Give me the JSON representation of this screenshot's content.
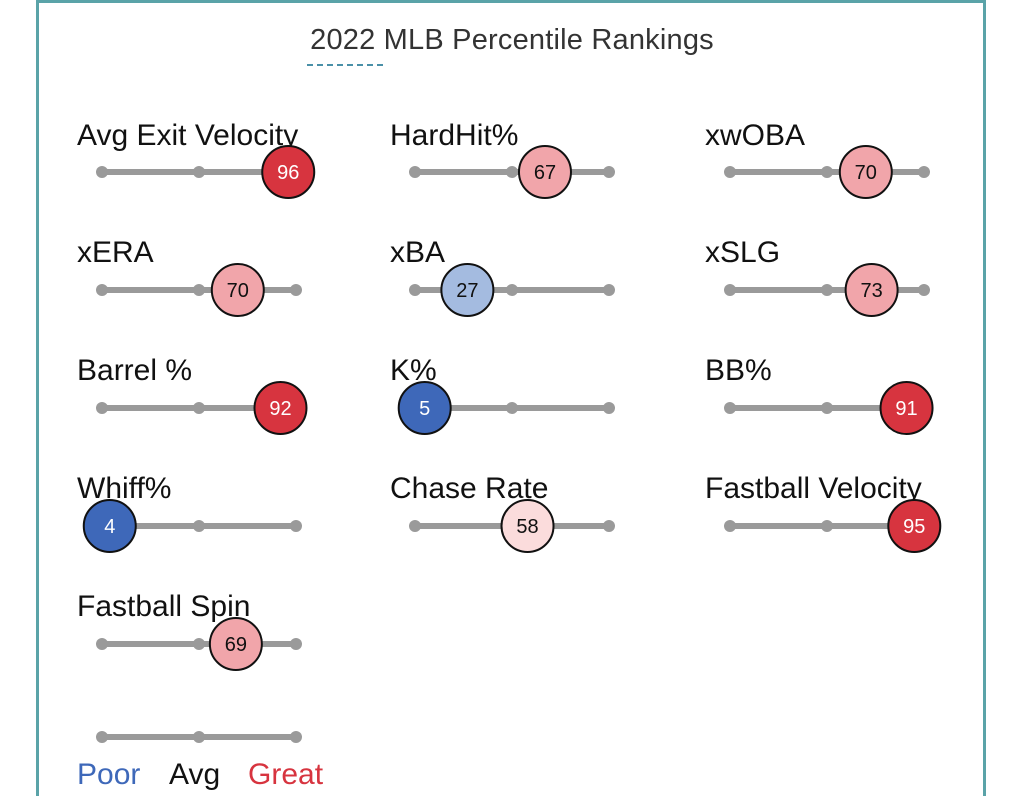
{
  "chart_data": {
    "type": "scatter",
    "title": "2022 MLB Percentile Rankings",
    "xlim": [
      0,
      100
    ],
    "metrics": [
      {
        "name": "Avg Exit Velocity",
        "value": 96,
        "color": "#d7343f"
      },
      {
        "name": "HardHit%",
        "value": 67,
        "color": "#f1a5aa"
      },
      {
        "name": "xwOBA",
        "value": 70,
        "color": "#f1a5aa"
      },
      {
        "name": "xERA",
        "value": 70,
        "color": "#f1a5aa"
      },
      {
        "name": "xBA",
        "value": 27,
        "color": "#a4bbe0"
      },
      {
        "name": "xSLG",
        "value": 73,
        "color": "#f1a5aa"
      },
      {
        "name": "Barrel %",
        "value": 92,
        "color": "#d7343f"
      },
      {
        "name": "K%",
        "value": 5,
        "color": "#3e68b9"
      },
      {
        "name": "BB%",
        "value": 91,
        "color": "#d7343f"
      },
      {
        "name": "Whiff%",
        "value": 4,
        "color": "#3e68b9"
      },
      {
        "name": "Chase Rate",
        "value": 58,
        "color": "#fbdcdc"
      },
      {
        "name": "Fastball Velocity",
        "value": 95,
        "color": "#d7343f"
      },
      {
        "name": "Fastball Spin",
        "value": 69,
        "color": "#f1a5aa"
      }
    ],
    "legend": {
      "poor": {
        "label": "Poor",
        "color": "#3e68b9"
      },
      "avg": {
        "label": "Avg",
        "color": "#111111"
      },
      "great": {
        "label": "Great",
        "color": "#d7343f"
      }
    },
    "track_color": "#9a9a9a",
    "light_text_color": "#ffffff",
    "dark_text_color": "#111111"
  }
}
